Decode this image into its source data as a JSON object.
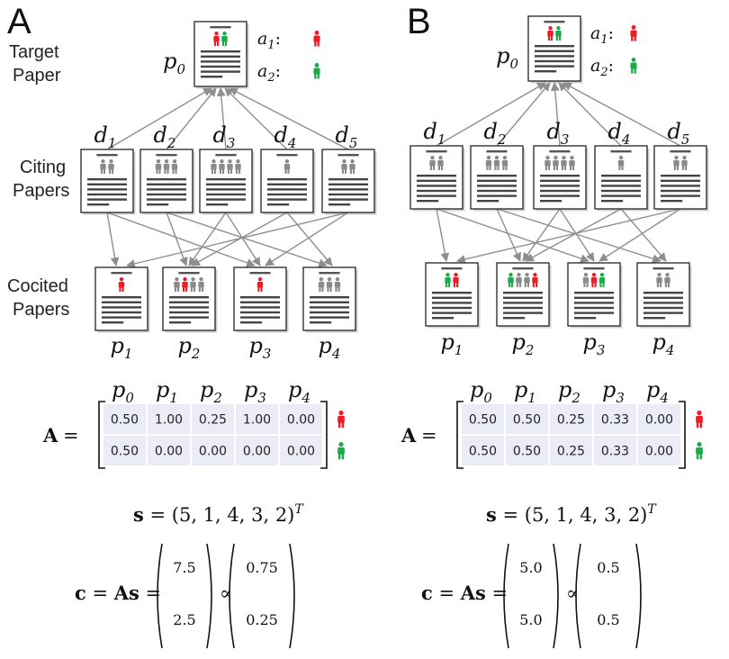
{
  "colors": {
    "author1": "#ee1c24",
    "author2": "#1faa4a",
    "other_author": "#8a8a8a",
    "matrix_bg": "#eaedf7",
    "edge": "#8e8e8e"
  },
  "row_labels": {
    "target": [
      "Target",
      "Paper"
    ],
    "citing": [
      "Citing",
      "Papers"
    ],
    "cocited": [
      "Cocited",
      "Papers"
    ]
  },
  "legend": [
    {
      "label": "a",
      "sub": "1",
      "suffix": ":",
      "color_key": "author1",
      "icon": "person-icon"
    },
    {
      "label": "a",
      "sub": "2",
      "suffix": ":",
      "color_key": "author2",
      "icon": "person-icon"
    }
  ],
  "panels": [
    {
      "letter": "A",
      "target": {
        "label": "p",
        "sub": "0",
        "authors": [
          "author1",
          "author2"
        ]
      },
      "citing": [
        {
          "label": "d",
          "sub": "1",
          "authors": [
            "other_author",
            "other_author"
          ]
        },
        {
          "label": "d",
          "sub": "2",
          "authors": [
            "other_author",
            "other_author",
            "other_author"
          ]
        },
        {
          "label": "d",
          "sub": "3",
          "authors": [
            "other_author",
            "other_author",
            "other_author",
            "other_author"
          ]
        },
        {
          "label": "d",
          "sub": "4",
          "authors": [
            "other_author"
          ]
        },
        {
          "label": "d",
          "sub": "5",
          "authors": [
            "other_author",
            "other_author"
          ]
        }
      ],
      "cocited": [
        {
          "label": "p",
          "sub": "1",
          "authors": [
            "author1"
          ]
        },
        {
          "label": "p",
          "sub": "2",
          "authors": [
            "other_author",
            "author1",
            "other_author",
            "other_author"
          ]
        },
        {
          "label": "p",
          "sub": "3",
          "authors": [
            "author1"
          ]
        },
        {
          "label": "p",
          "sub": "4",
          "authors": [
            "other_author",
            "other_author",
            "other_author"
          ]
        }
      ],
      "cocite_edges": [
        [
          0,
          0
        ],
        [
          0,
          2
        ],
        [
          1,
          1
        ],
        [
          1,
          3
        ],
        [
          2,
          1
        ],
        [
          2,
          2
        ],
        [
          3,
          1
        ],
        [
          3,
          3
        ],
        [
          4,
          0
        ],
        [
          4,
          2
        ]
      ],
      "matrix": {
        "lhs": "A",
        "eq": "=",
        "columns": [
          {
            "label": "p",
            "sub": "0"
          },
          {
            "label": "p",
            "sub": "1"
          },
          {
            "label": "p",
            "sub": "2"
          },
          {
            "label": "p",
            "sub": "3"
          },
          {
            "label": "p",
            "sub": "4"
          }
        ],
        "rows": [
          {
            "values": [
              "0.50",
              "1.00",
              "0.25",
              "1.00",
              "0.00"
            ],
            "author": "author1"
          },
          {
            "values": [
              "0.50",
              "0.00",
              "0.00",
              "0.00",
              "0.00"
            ],
            "author": "author2"
          }
        ]
      },
      "s_equation": {
        "lhs": "s",
        "eq": "=",
        "rhs": "(5, 1, 4, 3, 2)",
        "sup": "T"
      },
      "c_equation": {
        "c": "c",
        "eq1": "=",
        "As": "As",
        "eq2": "=",
        "vector": [
          "7.5",
          "2.5"
        ],
        "prop": "∝",
        "normalized": [
          "0.75",
          "0.25"
        ]
      }
    },
    {
      "letter": "B",
      "target": {
        "label": "p",
        "sub": "0",
        "authors": [
          "author1",
          "author2"
        ]
      },
      "citing": [
        {
          "label": "d",
          "sub": "1",
          "authors": [
            "other_author",
            "other_author"
          ]
        },
        {
          "label": "d",
          "sub": "2",
          "authors": [
            "other_author",
            "other_author",
            "other_author"
          ]
        },
        {
          "label": "d",
          "sub": "3",
          "authors": [
            "other_author",
            "other_author",
            "other_author",
            "other_author"
          ]
        },
        {
          "label": "d",
          "sub": "4",
          "authors": [
            "other_author"
          ]
        },
        {
          "label": "d",
          "sub": "5",
          "authors": [
            "other_author",
            "other_author"
          ]
        }
      ],
      "cocited": [
        {
          "label": "p",
          "sub": "1",
          "authors": [
            "author2",
            "author1"
          ]
        },
        {
          "label": "p",
          "sub": "2",
          "authors": [
            "author2",
            "other_author",
            "other_author",
            "author1"
          ]
        },
        {
          "label": "p",
          "sub": "3",
          "authors": [
            "other_author",
            "author1",
            "author2"
          ]
        },
        {
          "label": "p",
          "sub": "4",
          "authors": [
            "other_author",
            "other_author"
          ]
        }
      ],
      "cocite_edges": [
        [
          0,
          0
        ],
        [
          0,
          2
        ],
        [
          1,
          1
        ],
        [
          1,
          3
        ],
        [
          2,
          1
        ],
        [
          2,
          2
        ],
        [
          3,
          1
        ],
        [
          3,
          3
        ],
        [
          4,
          0
        ],
        [
          4,
          2
        ]
      ],
      "matrix": {
        "lhs": "A",
        "eq": "=",
        "columns": [
          {
            "label": "p",
            "sub": "0"
          },
          {
            "label": "p",
            "sub": "1"
          },
          {
            "label": "p",
            "sub": "2"
          },
          {
            "label": "p",
            "sub": "3"
          },
          {
            "label": "p",
            "sub": "4"
          }
        ],
        "rows": [
          {
            "values": [
              "0.50",
              "0.50",
              "0.25",
              "0.33",
              "0.00"
            ],
            "author": "author1"
          },
          {
            "values": [
              "0.50",
              "0.50",
              "0.25",
              "0.33",
              "0.00"
            ],
            "author": "author2"
          }
        ]
      },
      "s_equation": {
        "lhs": "s",
        "eq": "=",
        "rhs": "(5, 1, 4, 3, 2)",
        "sup": "T"
      },
      "c_equation": {
        "c": "c",
        "eq1": "=",
        "As": "As",
        "eq2": "=",
        "vector": [
          "5.0",
          "5.0"
        ],
        "prop": "∝",
        "normalized": [
          "0.5",
          "0.5"
        ]
      }
    }
  ]
}
